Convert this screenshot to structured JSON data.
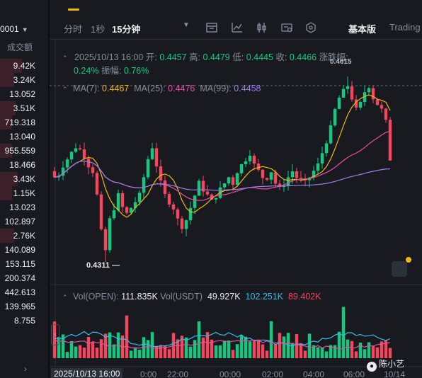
{
  "left_column": {
    "pair_value": "0001",
    "header": "成交额",
    "rows": [
      {
        "value": "9.42K",
        "color": "red",
        "fill": 0.55
      },
      {
        "value": "3.24K",
        "color": "red",
        "fill": 0.35
      },
      {
        "value": "13.052",
        "color": "none",
        "fill": 0
      },
      {
        "value": "3.51K",
        "color": "red",
        "fill": 0.4
      },
      {
        "value": "719.318",
        "color": "red",
        "fill": 0.3
      },
      {
        "value": "13.040",
        "color": "none",
        "fill": 0
      },
      {
        "value": "955.559",
        "color": "red",
        "fill": 0.3
      },
      {
        "value": "18.466",
        "color": "none",
        "fill": 0
      },
      {
        "value": "3.43K",
        "color": "red",
        "fill": 0.45
      },
      {
        "value": "1.15K",
        "color": "red",
        "fill": 0.3
      },
      {
        "value": "13.023",
        "color": "none",
        "fill": 0
      },
      {
        "value": "102.897",
        "color": "none",
        "fill": 0
      },
      {
        "value": "2.76K",
        "color": "red",
        "fill": 0.35
      },
      {
        "value": "140.089",
        "color": "none",
        "fill": 0
      },
      {
        "value": "153.115",
        "color": "none",
        "fill": 0
      },
      {
        "value": "200.374",
        "color": "none",
        "fill": 0
      },
      {
        "value": "442.613",
        "color": "none",
        "fill": 0
      },
      {
        "value": "139.965",
        "color": "none",
        "fill": 0
      },
      {
        "value": "8.755",
        "color": "none",
        "fill": 0
      }
    ]
  },
  "toolbar": {
    "time_share": "分时",
    "one_sec": "1秒",
    "interval": "15分钟",
    "basic": "基本版",
    "tradingview": "Trading"
  },
  "ohlc": {
    "date": "2025/10/13 16:00",
    "open_label": "开:",
    "open": "0.4457",
    "high_label": "高:",
    "high": "0.4479",
    "low_label": "低:",
    "low": "0.4445",
    "close_label": "收:",
    "close": "0.4466",
    "change_label": "涨跌幅:",
    "change": "0.24%",
    "amp_label": "振幅:",
    "amp": "0.76%"
  },
  "ma": {
    "ma7_label": "MA(7):",
    "ma7": "0.4467",
    "ma25_label": "MA(25):",
    "ma25": "0.4476",
    "ma99_label": "MA(99):",
    "ma99": "0.4458"
  },
  "volume": {
    "open_label": "Vol(OPEN):",
    "open_value": "111.835K",
    "usdt_label": "Vol(USDT)",
    "usdt_value": "49.927K",
    "ma_a": "102.251K",
    "ma_b": "89.402K"
  },
  "annotations": {
    "lowest": "0.4311",
    "highest": "0.4615"
  },
  "xaxis": {
    "current": "2025/10/13 16:00",
    "labels": [
      "0:00",
      "22:00",
      "00:00",
      "02:00",
      "04:00",
      "06:00",
      "10/14"
    ]
  },
  "user": {
    "name": "陈小艺"
  },
  "colors": {
    "up": "#0ecb81",
    "down": "#f6465d",
    "ma7": "#f0b90b",
    "ma25": "#e84fa3",
    "ma99": "#9b7ee8",
    "vol_ma": "#3bbbe8"
  }
}
